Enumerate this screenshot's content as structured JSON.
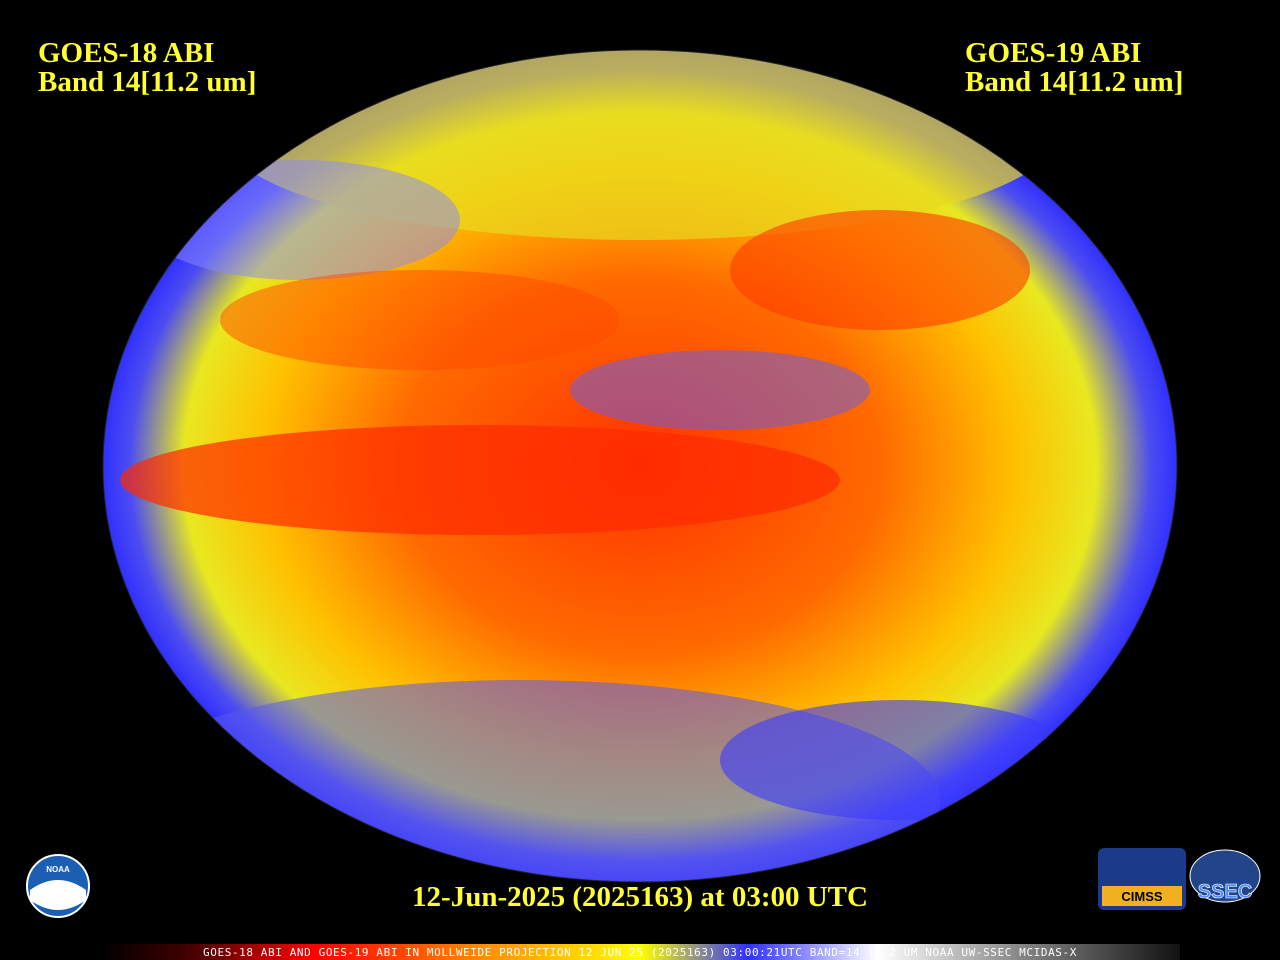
{
  "header": {
    "left_title": "GOES-18 ABI",
    "left_band": "Band 14[11.2 um]",
    "right_title": "GOES-19 ABI",
    "right_band": "Band 14[11.2 um]"
  },
  "timestamp": "12-Jun-2025 (2025163) at 03:00 UTC",
  "colorbar_caption": "GOES-18 ABI AND GOES-19 ABI IN MOLLWEIDE PROJECTION 12 JUN 25 (2025163) 03:00:21UTC BAND=14 11.2 UM NOAA UW-SSEC MCIDAS-X",
  "logos": [
    "NOAA",
    "CIMSS",
    "SSEC"
  ]
}
